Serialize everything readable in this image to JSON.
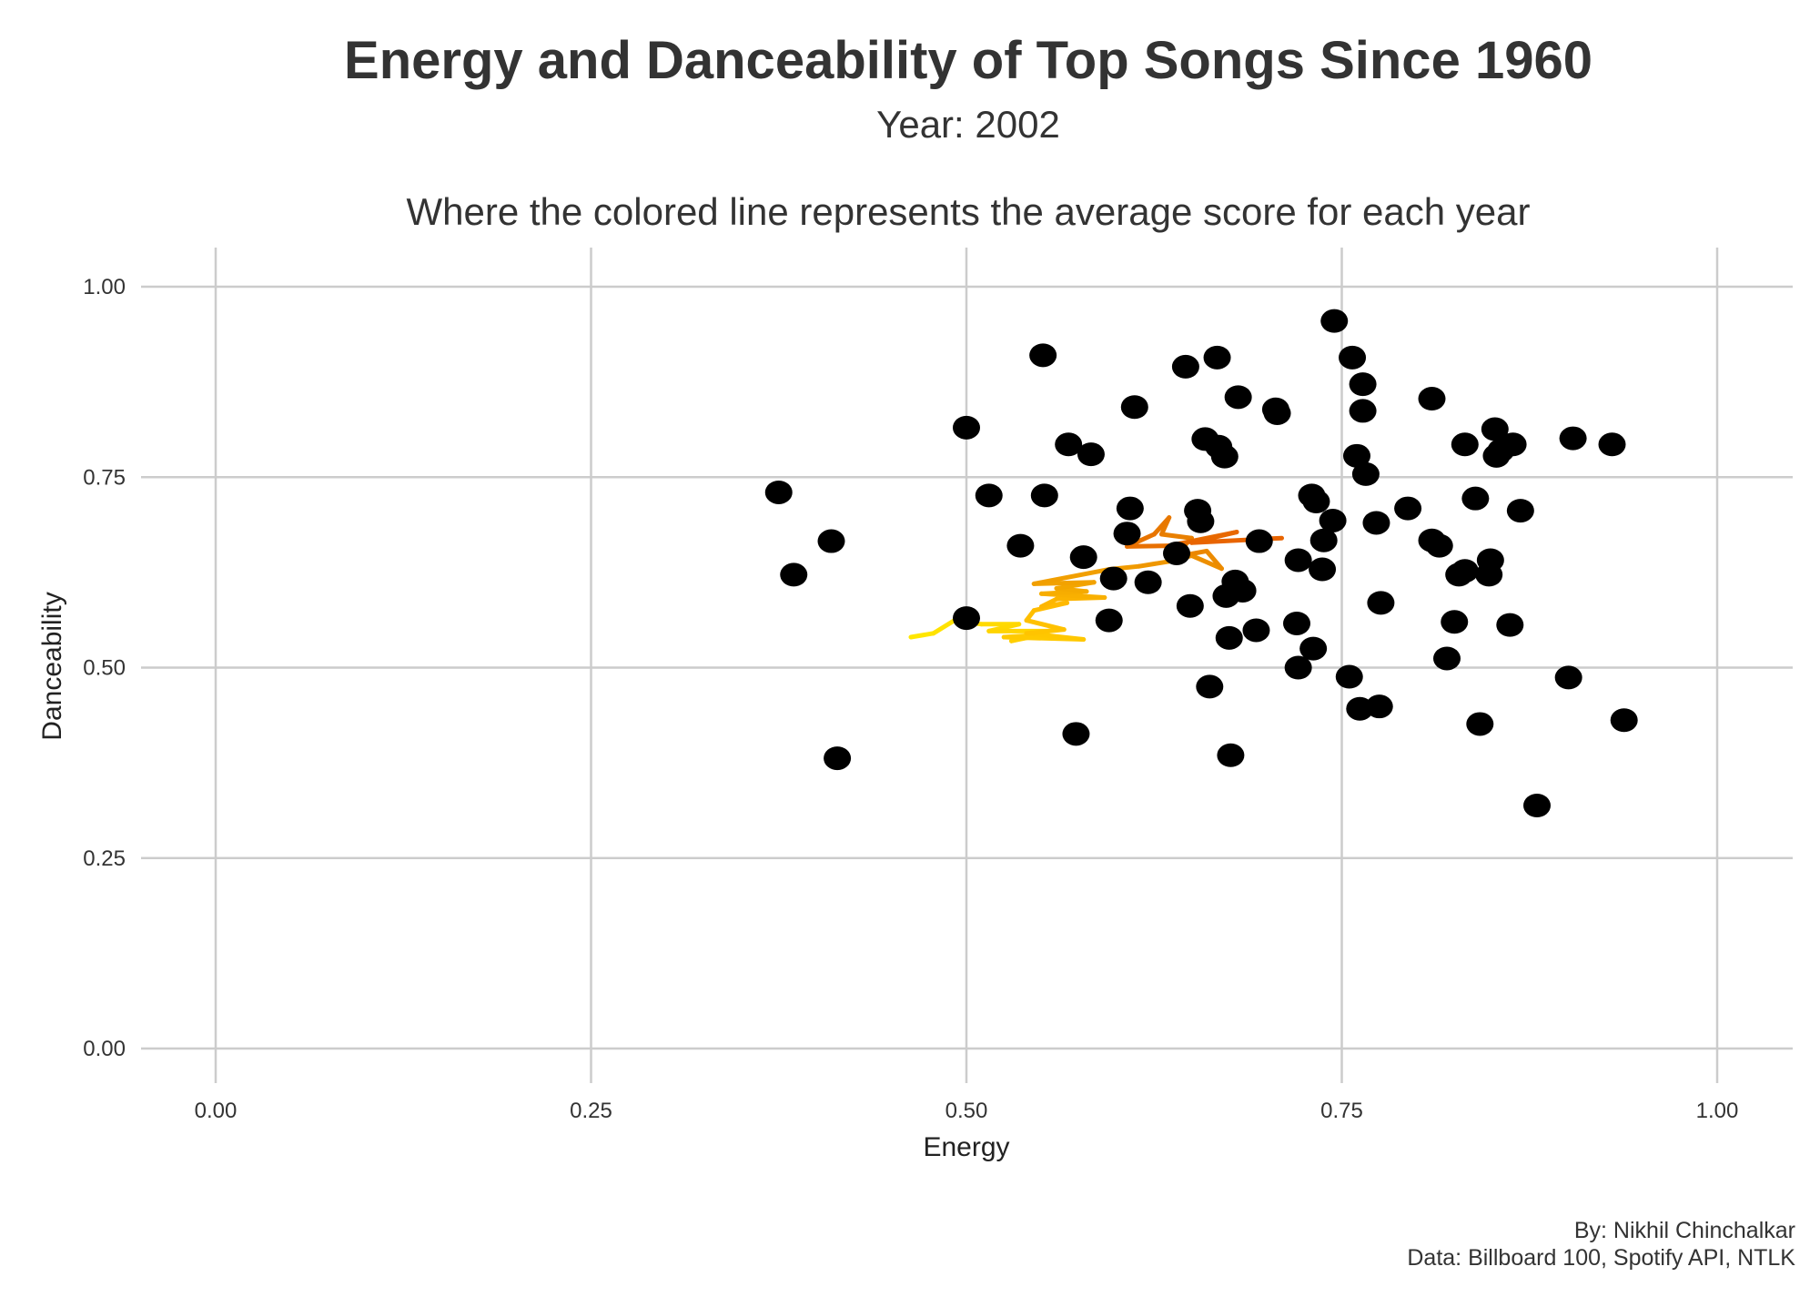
{
  "chart_data": {
    "type": "scatter",
    "title": "Energy and Danceability of Top Songs Since 1960",
    "subtitle": "Year: 2002",
    "subtitle2": "Where the colored line represents the average score for each year",
    "xlabel": "Energy",
    "ylabel": "Danceability",
    "xlim": [
      0,
      1
    ],
    "ylim": [
      0,
      1
    ],
    "x_ticks": [
      "0.00",
      "0.25",
      "0.50",
      "0.75",
      "1.00"
    ],
    "y_ticks": [
      "0.00",
      "0.25",
      "0.50",
      "0.75",
      "1.00"
    ],
    "grid": true,
    "point_color": "#000000",
    "points": [
      {
        "x": 0.375,
        "y": 0.73
      },
      {
        "x": 0.385,
        "y": 0.622
      },
      {
        "x": 0.41,
        "y": 0.666
      },
      {
        "x": 0.414,
        "y": 0.381
      },
      {
        "x": 0.5,
        "y": 0.815
      },
      {
        "x": 0.5,
        "y": 0.565
      },
      {
        "x": 0.515,
        "y": 0.726
      },
      {
        "x": 0.536,
        "y": 0.66
      },
      {
        "x": 0.551,
        "y": 0.91
      },
      {
        "x": 0.552,
        "y": 0.726
      },
      {
        "x": 0.568,
        "y": 0.793
      },
      {
        "x": 0.573,
        "y": 0.413
      },
      {
        "x": 0.578,
        "y": 0.645
      },
      {
        "x": 0.583,
        "y": 0.78
      },
      {
        "x": 0.595,
        "y": 0.562
      },
      {
        "x": 0.598,
        "y": 0.617
      },
      {
        "x": 0.607,
        "y": 0.676
      },
      {
        "x": 0.609,
        "y": 0.709
      },
      {
        "x": 0.612,
        "y": 0.842
      },
      {
        "x": 0.621,
        "y": 0.612
      },
      {
        "x": 0.64,
        "y": 0.65
      },
      {
        "x": 0.646,
        "y": 0.895
      },
      {
        "x": 0.649,
        "y": 0.581
      },
      {
        "x": 0.654,
        "y": 0.706
      },
      {
        "x": 0.656,
        "y": 0.692
      },
      {
        "x": 0.659,
        "y": 0.8
      },
      {
        "x": 0.662,
        "y": 0.475
      },
      {
        "x": 0.667,
        "y": 0.907
      },
      {
        "x": 0.668,
        "y": 0.79
      },
      {
        "x": 0.672,
        "y": 0.777
      },
      {
        "x": 0.673,
        "y": 0.594
      },
      {
        "x": 0.675,
        "y": 0.539
      },
      {
        "x": 0.676,
        "y": 0.385
      },
      {
        "x": 0.679,
        "y": 0.613
      },
      {
        "x": 0.681,
        "y": 0.855
      },
      {
        "x": 0.684,
        "y": 0.601
      },
      {
        "x": 0.693,
        "y": 0.549
      },
      {
        "x": 0.695,
        "y": 0.666
      },
      {
        "x": 0.706,
        "y": 0.839
      },
      {
        "x": 0.707,
        "y": 0.834
      },
      {
        "x": 0.72,
        "y": 0.558
      },
      {
        "x": 0.721,
        "y": 0.5
      },
      {
        "x": 0.721,
        "y": 0.641
      },
      {
        "x": 0.73,
        "y": 0.726
      },
      {
        "x": 0.731,
        "y": 0.525
      },
      {
        "x": 0.733,
        "y": 0.718
      },
      {
        "x": 0.737,
        "y": 0.629
      },
      {
        "x": 0.738,
        "y": 0.667
      },
      {
        "x": 0.744,
        "y": 0.693
      },
      {
        "x": 0.745,
        "y": 0.955
      },
      {
        "x": 0.755,
        "y": 0.488
      },
      {
        "x": 0.757,
        "y": 0.907
      },
      {
        "x": 0.76,
        "y": 0.778
      },
      {
        "x": 0.762,
        "y": 0.446
      },
      {
        "x": 0.764,
        "y": 0.837
      },
      {
        "x": 0.764,
        "y": 0.872
      },
      {
        "x": 0.766,
        "y": 0.754
      },
      {
        "x": 0.773,
        "y": 0.69
      },
      {
        "x": 0.775,
        "y": 0.449
      },
      {
        "x": 0.776,
        "y": 0.585
      },
      {
        "x": 0.794,
        "y": 0.709
      },
      {
        "x": 0.81,
        "y": 0.853
      },
      {
        "x": 0.81,
        "y": 0.667
      },
      {
        "x": 0.815,
        "y": 0.66
      },
      {
        "x": 0.82,
        "y": 0.512
      },
      {
        "x": 0.825,
        "y": 0.56
      },
      {
        "x": 0.828,
        "y": 0.622
      },
      {
        "x": 0.832,
        "y": 0.627
      },
      {
        "x": 0.832,
        "y": 0.793
      },
      {
        "x": 0.839,
        "y": 0.722
      },
      {
        "x": 0.842,
        "y": 0.426
      },
      {
        "x": 0.848,
        "y": 0.622
      },
      {
        "x": 0.849,
        "y": 0.641
      },
      {
        "x": 0.852,
        "y": 0.813
      },
      {
        "x": 0.853,
        "y": 0.778
      },
      {
        "x": 0.856,
        "y": 0.785
      },
      {
        "x": 0.862,
        "y": 0.556
      },
      {
        "x": 0.864,
        "y": 0.793
      },
      {
        "x": 0.869,
        "y": 0.706
      },
      {
        "x": 0.88,
        "y": 0.319
      },
      {
        "x": 0.901,
        "y": 0.487
      },
      {
        "x": 0.904,
        "y": 0.801
      },
      {
        "x": 0.93,
        "y": 0.793
      },
      {
        "x": 0.938,
        "y": 0.431
      }
    ],
    "average_line": [
      {
        "x": 0.463,
        "y": 0.54,
        "color": "#FFEA00"
      },
      {
        "x": 0.478,
        "y": 0.545,
        "color": "#FFE600"
      },
      {
        "x": 0.492,
        "y": 0.562,
        "color": "#FFE200"
      },
      {
        "x": 0.51,
        "y": 0.557,
        "color": "#FFDE00"
      },
      {
        "x": 0.535,
        "y": 0.557,
        "color": "#FFDA00"
      },
      {
        "x": 0.515,
        "y": 0.548,
        "color": "#FFD700"
      },
      {
        "x": 0.555,
        "y": 0.548,
        "color": "#FFD400"
      },
      {
        "x": 0.53,
        "y": 0.535,
        "color": "#FFD200"
      },
      {
        "x": 0.55,
        "y": 0.543,
        "color": "#FFCF00"
      },
      {
        "x": 0.525,
        "y": 0.54,
        "color": "#FFCC00"
      },
      {
        "x": 0.578,
        "y": 0.537,
        "color": "#FFC900"
      },
      {
        "x": 0.54,
        "y": 0.545,
        "color": "#FFC700"
      },
      {
        "x": 0.565,
        "y": 0.55,
        "color": "#FFC400"
      },
      {
        "x": 0.54,
        "y": 0.562,
        "color": "#FFC100"
      },
      {
        "x": 0.545,
        "y": 0.575,
        "color": "#FFBF00"
      },
      {
        "x": 0.567,
        "y": 0.585,
        "color": "#FFBC00"
      },
      {
        "x": 0.55,
        "y": 0.58,
        "color": "#FFB900"
      },
      {
        "x": 0.56,
        "y": 0.59,
        "color": "#FDB600"
      },
      {
        "x": 0.592,
        "y": 0.592,
        "color": "#FBB300"
      },
      {
        "x": 0.55,
        "y": 0.597,
        "color": "#F9B000"
      },
      {
        "x": 0.58,
        "y": 0.6,
        "color": "#F7AD00"
      },
      {
        "x": 0.56,
        "y": 0.604,
        "color": "#F5AA00"
      },
      {
        "x": 0.585,
        "y": 0.612,
        "color": "#F3A600"
      },
      {
        "x": 0.545,
        "y": 0.61,
        "color": "#F2A200"
      },
      {
        "x": 0.595,
        "y": 0.629,
        "color": "#F19F00"
      },
      {
        "x": 0.615,
        "y": 0.633,
        "color": "#F09B00"
      },
      {
        "x": 0.637,
        "y": 0.64,
        "color": "#EF9700"
      },
      {
        "x": 0.65,
        "y": 0.647,
        "color": "#EE9300"
      },
      {
        "x": 0.67,
        "y": 0.63,
        "color": "#ED8F00"
      },
      {
        "x": 0.66,
        "y": 0.653,
        "color": "#EC8B00"
      },
      {
        "x": 0.638,
        "y": 0.645,
        "color": "#EB8700"
      },
      {
        "x": 0.65,
        "y": 0.67,
        "color": "#EA8300"
      },
      {
        "x": 0.63,
        "y": 0.675,
        "color": "#E98000"
      },
      {
        "x": 0.635,
        "y": 0.697,
        "color": "#E87C00"
      },
      {
        "x": 0.625,
        "y": 0.675,
        "color": "#E87800"
      },
      {
        "x": 0.607,
        "y": 0.659,
        "color": "#E87400"
      },
      {
        "x": 0.635,
        "y": 0.66,
        "color": "#E87000"
      },
      {
        "x": 0.68,
        "y": 0.678,
        "color": "#E86C00"
      },
      {
        "x": 0.65,
        "y": 0.664,
        "color": "#E86800"
      },
      {
        "x": 0.71,
        "y": 0.67,
        "color": "#E86400"
      }
    ],
    "caption": [
      "By: Nikhil Chinchalkar",
      "Data: Billboard 100, Spotify API, NTLK"
    ]
  }
}
